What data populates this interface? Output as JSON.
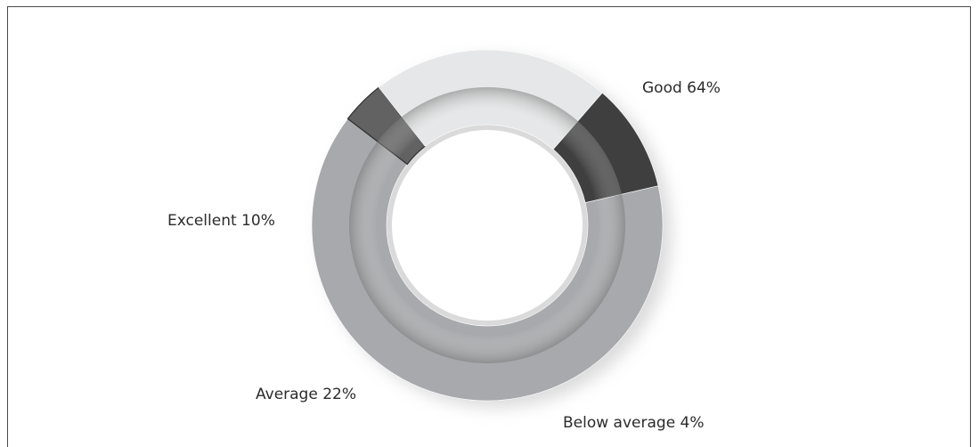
{
  "chart_data": {
    "type": "pie",
    "variant": "donut",
    "title": "",
    "legend": "none",
    "slices": [
      {
        "label": "Good 64%",
        "category": "Good",
        "value": 64,
        "color": "#a7a9ac"
      },
      {
        "label": "Below average 4%",
        "category": "Below average",
        "value": 4,
        "color": "#626262"
      },
      {
        "label": "Average 22%",
        "category": "Average",
        "value": 22,
        "color": "#e6e7e8"
      },
      {
        "label": "Excellent 10%",
        "category": "Excellent",
        "value": 10,
        "color": "#3f3f3f"
      }
    ]
  }
}
